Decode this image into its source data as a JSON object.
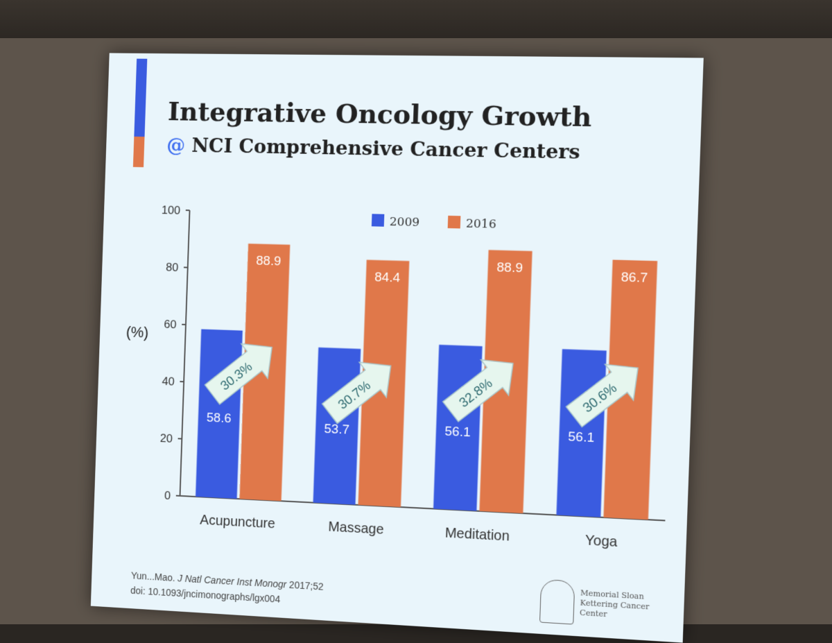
{
  "slide": {
    "title_line1": "Integrative Oncology Growth",
    "title_at": "@",
    "title_line2": "NCI Comprehensive Cancer Centers",
    "footer_authors": "Yun...Mao.",
    "footer_journal": "J Natl Cancer Inst Monogr",
    "footer_year": "2017;52",
    "footer_doi": "doi: 10.1093/jncimonographs/lgx004",
    "logo_text": "Memorial Sloan Kettering Cancer Center"
  },
  "colors": {
    "series_2009": "#3a5be0",
    "series_2016": "#e0784a",
    "arrow": "#e6f6ee"
  },
  "chart_data": {
    "type": "bar",
    "ylabel": "(%)",
    "ylim": [
      0,
      100
    ],
    "yticks": [
      0,
      20,
      40,
      60,
      80,
      100
    ],
    "categories": [
      "Acupuncture",
      "Massage",
      "Meditation",
      "Yoga"
    ],
    "series": [
      {
        "name": "2009",
        "values": [
          58.6,
          53.7,
          56.1,
          56.1
        ],
        "labels": [
          "58.6",
          "53.7",
          "56.1",
          "56.1"
        ]
      },
      {
        "name": "2016",
        "values": [
          88.9,
          84.4,
          88.9,
          86.7
        ],
        "labels": [
          "88.9",
          "84.4",
          "88.9",
          "86.7"
        ]
      }
    ],
    "growth_labels": [
      "30.3%",
      "30.7%",
      "32.8%",
      "30.6%"
    ],
    "legend": "top-center",
    "grid": false
  }
}
